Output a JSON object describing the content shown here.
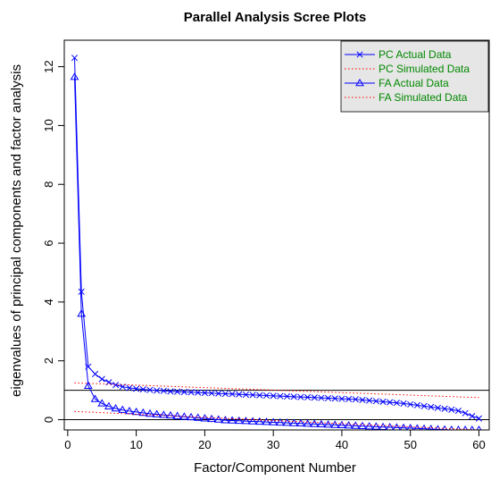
{
  "chart_data": {
    "type": "line",
    "title": "Parallel Analysis Scree Plots",
    "xlabel": "Factor/Component Number",
    "ylabel": "eigenvalues of principal components and factor analysis",
    "xlim": [
      -0.5,
      61.5
    ],
    "ylim": [
      -0.35,
      12.9
    ],
    "x_ticks": [
      0,
      10,
      20,
      30,
      40,
      50,
      60
    ],
    "y_ticks": [
      0,
      2,
      4,
      6,
      8,
      10,
      12
    ],
    "reference_lines": [
      1,
      0
    ],
    "legend": {
      "position": "top-right",
      "entries": [
        {
          "label": "PC  Actual Data",
          "color": "#0000ff",
          "style": "solid-x"
        },
        {
          "label": "PC  Simulated Data",
          "color": "#ff0000",
          "style": "dotted"
        },
        {
          "label": "FA  Actual Data",
          "color": "#0000ff",
          "style": "solid-triangle"
        },
        {
          "label": "FA  Simulated Data",
          "color": "#ff0000",
          "style": "dotted"
        }
      ],
      "text_color": "#008800",
      "background": "#e6e6e6"
    },
    "series": [
      {
        "name": "PC  Actual Data",
        "color": "#0000ff",
        "marker": "x",
        "line": "solid",
        "x_start": 1,
        "values": [
          12.3,
          4.35,
          1.8,
          1.55,
          1.38,
          1.27,
          1.18,
          1.12,
          1.08,
          1.05,
          1.03,
          1.01,
          0.99,
          0.98,
          0.96,
          0.95,
          0.94,
          0.93,
          0.92,
          0.91,
          0.9,
          0.89,
          0.88,
          0.87,
          0.86,
          0.85,
          0.84,
          0.83,
          0.82,
          0.81,
          0.8,
          0.79,
          0.78,
          0.77,
          0.76,
          0.75,
          0.74,
          0.73,
          0.72,
          0.71,
          0.7,
          0.69,
          0.67,
          0.65,
          0.63,
          0.61,
          0.59,
          0.57,
          0.55,
          0.52,
          0.49,
          0.46,
          0.43,
          0.4,
          0.37,
          0.34,
          0.3,
          0.22,
          0.12,
          0.04
        ]
      },
      {
        "name": "PC  Simulated Data",
        "color": "#ff0000",
        "marker": "none",
        "line": "dotted",
        "points": [
          [
            1,
            1.25
          ],
          [
            60,
            0.75
          ]
        ]
      },
      {
        "name": "FA  Actual Data",
        "color": "#0000ff",
        "marker": "triangle",
        "line": "solid",
        "x_start": 1,
        "values": [
          11.65,
          3.6,
          1.15,
          0.7,
          0.55,
          0.45,
          0.38,
          0.33,
          0.29,
          0.26,
          0.23,
          0.2,
          0.18,
          0.16,
          0.14,
          0.12,
          0.1,
          0.08,
          0.06,
          0.04,
          0.02,
          0.0,
          -0.02,
          -0.03,
          -0.04,
          -0.05,
          -0.06,
          -0.07,
          -0.08,
          -0.09,
          -0.1,
          -0.11,
          -0.12,
          -0.13,
          -0.14,
          -0.15,
          -0.16,
          -0.17,
          -0.18,
          -0.19,
          -0.2,
          -0.21,
          -0.22,
          -0.23,
          -0.24,
          -0.25,
          -0.26,
          -0.27,
          -0.28,
          -0.29,
          -0.3,
          -0.31,
          -0.32,
          -0.33,
          -0.34,
          -0.35,
          -0.35,
          -0.35,
          -0.35,
          -0.35
        ]
      },
      {
        "name": "FA  Simulated Data",
        "color": "#ff0000",
        "marker": "none",
        "line": "dotted",
        "points": [
          [
            1,
            0.28
          ],
          [
            60,
            -0.35
          ]
        ]
      }
    ]
  }
}
